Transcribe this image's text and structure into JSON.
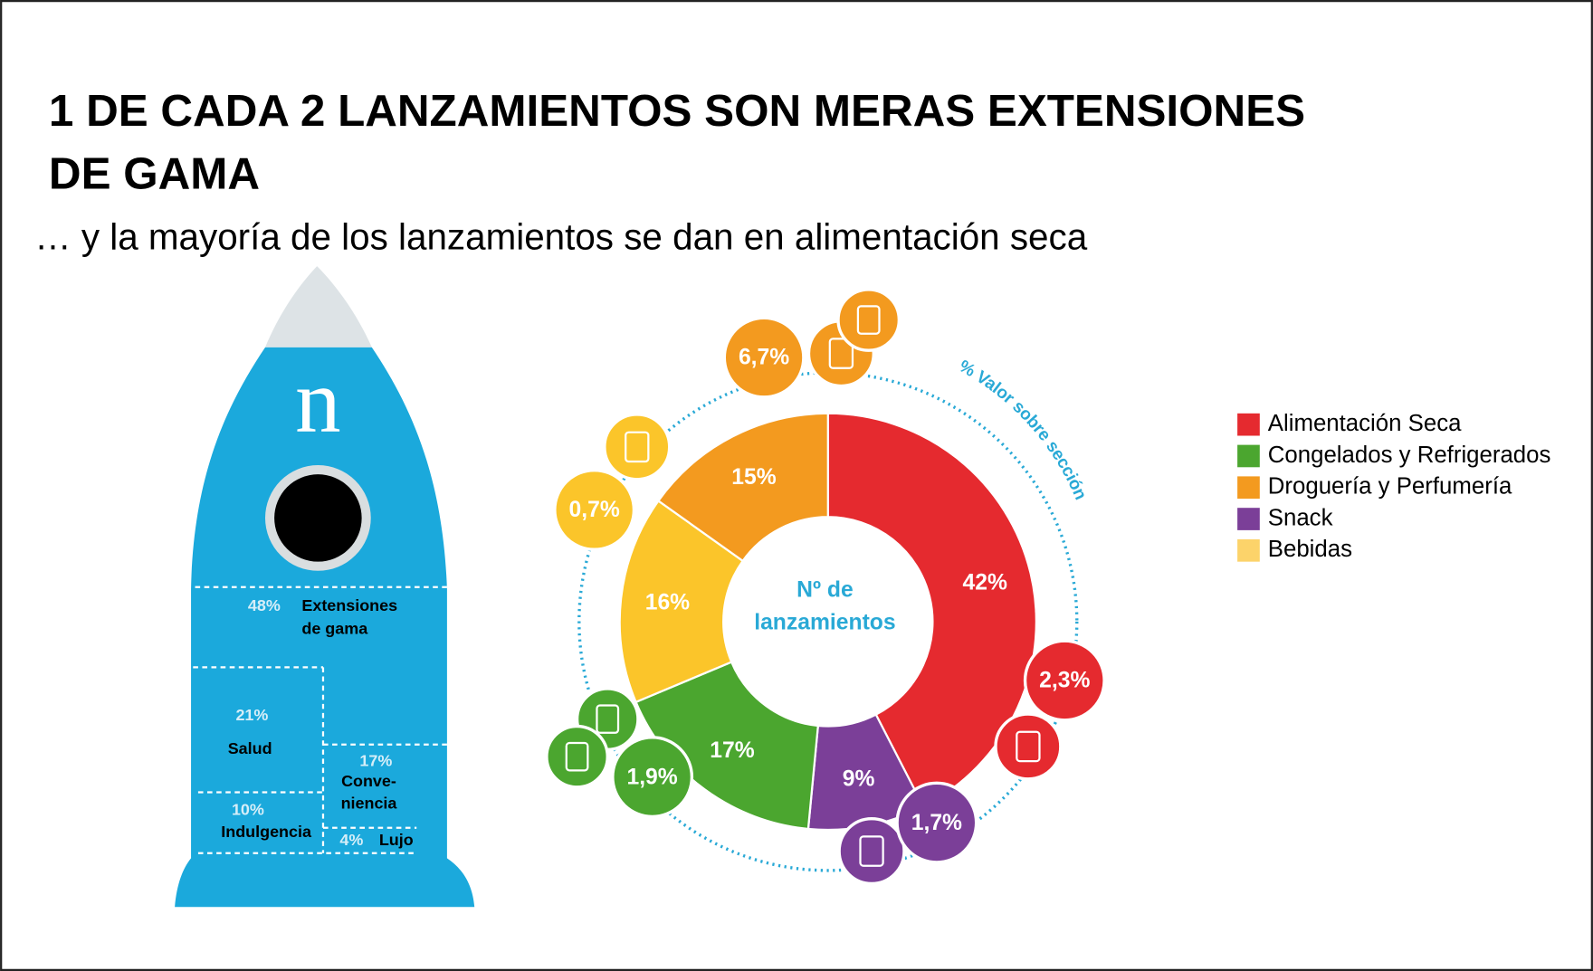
{
  "header": {
    "title_lines": [
      "1 DE CADA 2 LANZAMIENTOS SON MERAS EXTENSIONES",
      "DE GAMA"
    ],
    "subtitle": "… y la mayoría de los lanzamientos se dan en alimentación seca"
  },
  "rocket": {
    "logo": "n",
    "segments": [
      {
        "value": "48%",
        "label_lines": [
          "Extensiones",
          "de gama"
        ]
      },
      {
        "value": "21%",
        "label_lines": [
          "Salud"
        ]
      },
      {
        "value": "17%",
        "label_lines": [
          "Conve-",
          "niencia"
        ]
      },
      {
        "value": "10%",
        "label_lines": [
          "Indulgencia"
        ]
      },
      {
        "value": "4%",
        "label_lines": [
          "Lujo"
        ]
      }
    ]
  },
  "chart_data": {
    "type": "donut",
    "center_label_lines": [
      "Nº de",
      "lanzamientos"
    ],
    "ring_label": "% Valor sobre sección",
    "categories": [
      "Alimentación Seca",
      "Snack",
      "Congelados y Refrigerados",
      "Bebidas",
      "Droguería y Perfumería"
    ],
    "colors": [
      "#e52a2f",
      "#7b3f98",
      "#4ba62f",
      "#fbc52a",
      "#f39a1f"
    ],
    "values": [
      42,
      9,
      17,
      16,
      15
    ],
    "value_labels": [
      "42%",
      "9%",
      "17%",
      "16%",
      "15%"
    ],
    "section_values": [
      2.3,
      1.7,
      1.9,
      0.7,
      6.7
    ],
    "section_value_labels": [
      "2,3%",
      "1,7%",
      "1,9%",
      "0,7%",
      "6,7%"
    ],
    "legend": [
      {
        "name": "Alimentación Seca",
        "color": "#e52a2f"
      },
      {
        "name": "Congelados y Refrigerados",
        "color": "#4ba62f"
      },
      {
        "name": "Droguería y Perfumería",
        "color": "#f39a1f"
      },
      {
        "name": "Snack",
        "color": "#7b3f98"
      },
      {
        "name": "Bebidas",
        "color": "#fcd36a"
      }
    ]
  }
}
